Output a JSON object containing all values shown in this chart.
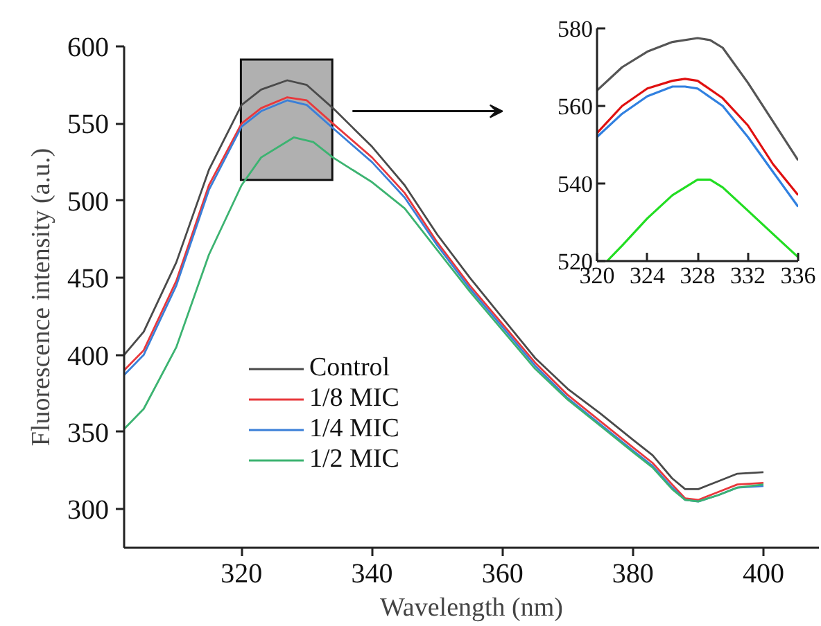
{
  "chart_data": [
    {
      "type": "line",
      "xlabel": "Wavelength (nm)",
      "ylabel": "Fluorescence intensity (a.u.)",
      "xlim": [
        302,
        408.5
      ],
      "ylim": [
        275,
        600
      ],
      "xticks": [
        320,
        340,
        360,
        380,
        400
      ],
      "yticks": [
        300,
        350,
        400,
        450,
        500,
        550,
        600
      ],
      "grid": false,
      "legend": "bottom left",
      "marker": "none",
      "line_style": "solid",
      "x": [
        302,
        305,
        310,
        315,
        320,
        323,
        327,
        330,
        334,
        340,
        345,
        350,
        355,
        360,
        365,
        370,
        375,
        380,
        383,
        386,
        388,
        390,
        393,
        396,
        400
      ],
      "series": [
        {
          "name": "Control",
          "color": "#4a4a4a",
          "values": [
            400,
            415,
            460,
            520,
            562,
            572,
            578,
            575,
            560,
            535,
            510,
            478,
            450,
            424,
            398,
            378,
            362,
            345,
            335,
            320,
            313,
            313,
            318,
            323,
            324
          ]
        },
        {
          "name": "1/8 MIC",
          "color": "#e8383c",
          "values": [
            390,
            403,
            448,
            510,
            550,
            560,
            567,
            565,
            550,
            528,
            505,
            473,
            445,
            420,
            395,
            374,
            357,
            340,
            330,
            316,
            307,
            306,
            311,
            316,
            317
          ]
        },
        {
          "name": "1/4 MIC",
          "color": "#3a7fd8",
          "values": [
            387,
            400,
            445,
            507,
            548,
            558,
            565,
            562,
            547,
            525,
            502,
            471,
            443,
            418,
            393,
            372,
            355,
            338,
            328,
            314,
            306,
            305,
            309,
            314,
            315
          ]
        },
        {
          "name": "1/2 MIC",
          "color": "#3cb371",
          "x": [
            302,
            305,
            310,
            315,
            320,
            323,
            328,
            331,
            334,
            340,
            345,
            350,
            355,
            360,
            365,
            370,
            375,
            380,
            383,
            386,
            388,
            390,
            393,
            396,
            400
          ],
          "values": [
            352,
            365,
            405,
            465,
            510,
            528,
            541,
            538,
            528,
            512,
            495,
            468,
            441,
            416,
            391,
            371,
            354,
            337,
            327,
            313,
            306,
            305,
            309,
            314,
            316
          ]
        }
      ]
    },
    {
      "type": "line",
      "xlim": [
        320,
        336
      ],
      "ylim": [
        520,
        580
      ],
      "xticks": [
        320,
        324,
        328,
        332,
        336
      ],
      "yticks": [
        520,
        540,
        560,
        580
      ],
      "grid": false,
      "legend": false,
      "marker": "none",
      "line_style": "solid",
      "x": [
        320,
        322,
        324,
        326,
        328,
        329,
        330,
        332,
        334,
        336
      ],
      "series": [
        {
          "color": "#555555",
          "values": [
            564,
            570,
            574,
            576.5,
            577.5,
            577,
            575,
            566,
            556,
            546
          ]
        },
        {
          "color": "#e01010",
          "x": [
            320,
            322,
            324,
            326,
            327,
            328,
            330,
            332,
            334,
            336
          ],
          "values": [
            553,
            560,
            564.5,
            566.5,
            567,
            566.5,
            562,
            555,
            545,
            537
          ]
        },
        {
          "color": "#3080e0",
          "x": [
            320,
            322,
            324,
            326,
            327,
            328,
            330,
            332,
            334,
            336
          ],
          "values": [
            552,
            558,
            562.5,
            565,
            565,
            564.5,
            560,
            552,
            543,
            534
          ]
        },
        {
          "color": "#22dd22",
          "x": [
            320.8,
            322,
            324,
            326,
            328,
            329,
            330,
            332,
            334,
            336
          ],
          "values": [
            520,
            524,
            531,
            537,
            541,
            541,
            539,
            533,
            527,
            521
          ]
        }
      ]
    }
  ]
}
